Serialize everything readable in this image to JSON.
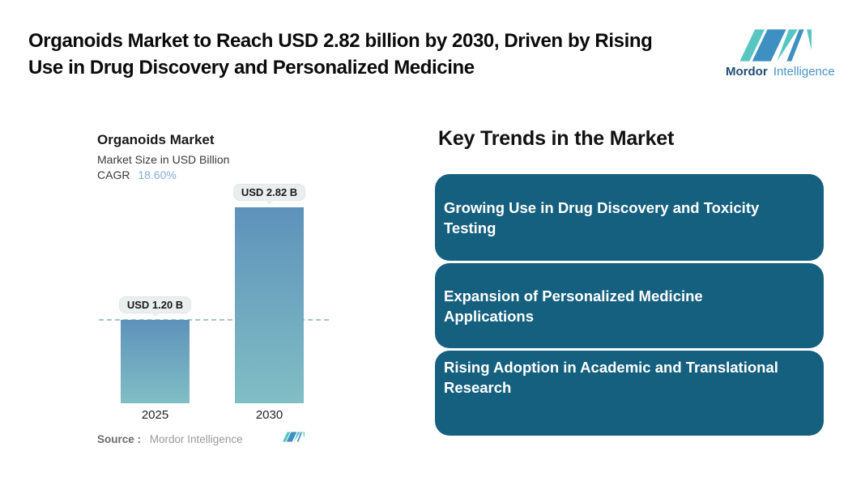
{
  "header": {
    "headline": {
      "line1": "Organoids Market to Reach USD 2.82 billion by 2030, Driven by Rising",
      "line2": "Use in Drug Discovery and Personalized Medicine"
    },
    "logo": {
      "brand_bold": "Mordor",
      "brand_light": "Intelligence"
    }
  },
  "chart": {
    "cagr_label": "CAGR",
    "cagr_value": "18.60%",
    "source_label": "Source :",
    "source_value": "Mordor Intelligence"
  },
  "chart_data": {
    "type": "bar",
    "title": "Organoids Market",
    "subtitle": "Market Size in USD Billion",
    "categories": [
      "2025",
      "2030"
    ],
    "values": [
      1.2,
      2.82
    ],
    "data_labels": [
      "USD 1.20 B",
      "USD 2.82 B"
    ],
    "cagr_pct": 18.6,
    "ylabel": "Market Size in USD Billion",
    "ylim": [
      0,
      3
    ],
    "reference_line_value": 1.2,
    "grid": false,
    "legend": "none",
    "source": "Mordor Intelligence"
  },
  "trends": {
    "title": "Key Trends in the Market",
    "items": [
      {
        "line1": "Growing Use in Drug Discovery and Toxicity",
        "line2": "Testing"
      },
      {
        "line1": "Expansion of Personalized Medicine",
        "line2": "Applications"
      },
      {
        "line1": "Rising Adoption in Academic and Translational",
        "line2": "Research"
      }
    ]
  },
  "colors": {
    "headline_text": "#0B0B0B",
    "trend_box": "#16607F",
    "trend_text": "#FFFFFF",
    "bar_gradient_top": "#5E92BB",
    "bar_gradient_bottom": "#81BEC4",
    "dashed_line": "#A5C2D8",
    "badge_bg": "#E9EFEF",
    "cagr_value": "#85ADD3",
    "logo_teal": "#57C5C2",
    "logo_blue": "#3E8FC2",
    "logo_text_dark": "#234C74",
    "logo_text_light": "#4A93C8",
    "source_text": "#9A9A9A"
  }
}
